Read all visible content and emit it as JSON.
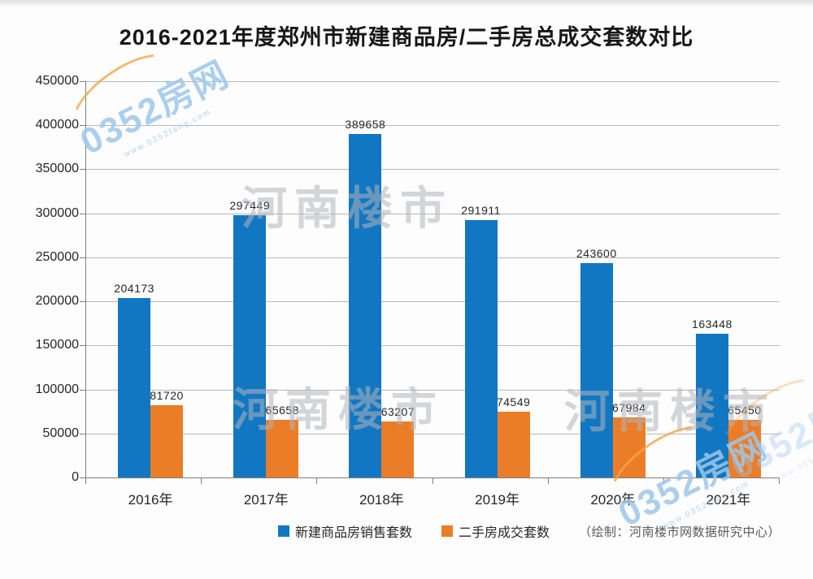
{
  "chart_data": {
    "type": "bar",
    "title": "2016-2021年度郑州市新建商品房/二手房总成交套数对比",
    "categories": [
      "2016年",
      "2017年",
      "2018年",
      "2019年",
      "2020年",
      "2021年"
    ],
    "series": [
      {
        "name": "新建商品房销售套数",
        "color": "#1277c2",
        "values": [
          204173,
          297449,
          389658,
          291911,
          243600,
          163448
        ]
      },
      {
        "name": "二手房成交套数",
        "color": "#ec7d28",
        "values": [
          81720,
          65658,
          63207,
          74549,
          67984,
          65450
        ]
      }
    ],
    "ylabel": "",
    "xlabel": "",
    "ylim": [
      0,
      450000
    ],
    "ytick_step": 50000,
    "yticks": [
      "450000",
      "400000",
      "350000",
      "300000",
      "250000",
      "200000",
      "150000",
      "100000",
      "50000",
      "0"
    ],
    "grid": true,
    "grid_color": "#b8b8b8",
    "axis_color": "#7f7f7f",
    "legend_position": "bottom"
  },
  "credit": "（绘制：河南楼市网数据研究中心）",
  "watermarks": {
    "brand": "0352房网",
    "brand_url": "www.0352fang.com",
    "background_text": "河南楼市"
  }
}
